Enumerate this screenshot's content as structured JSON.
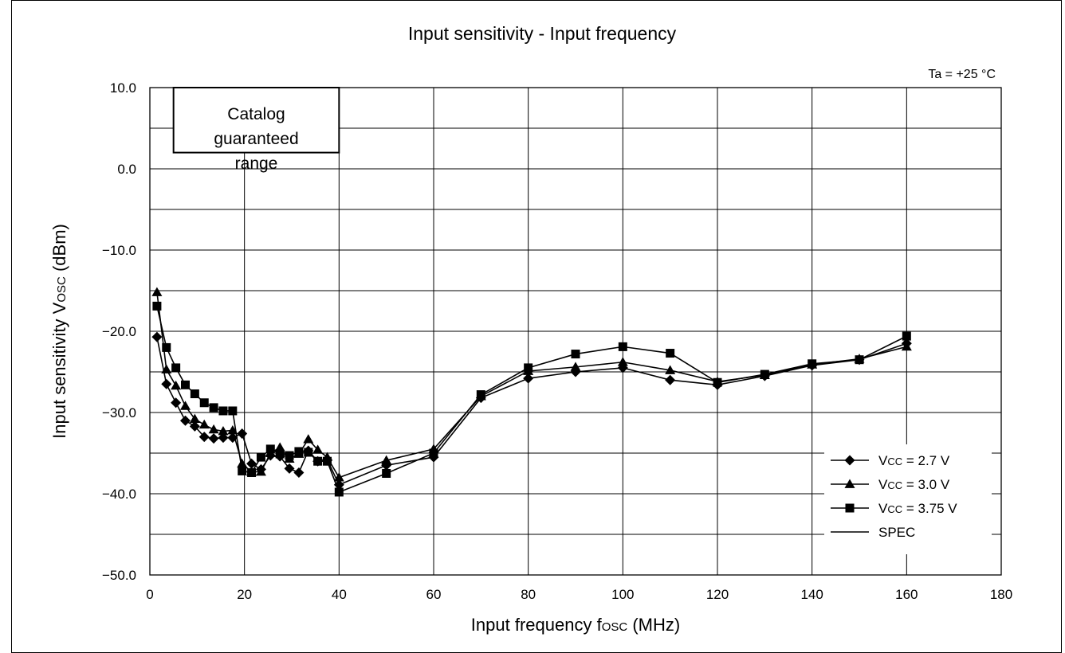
{
  "chart_data": {
    "type": "line",
    "title": "Input sensitivity - Input frequency",
    "annotation": "Ta = +25 °C",
    "xlabel": {
      "main": "Input frequency f",
      "sub": "OSC",
      "unit": " (MHz)"
    },
    "ylabel": {
      "main": "Input sensitivity V",
      "sub": "OSC",
      "unit": " (dBm)"
    },
    "xlim": [
      0,
      180
    ],
    "ylim": [
      -50,
      10
    ],
    "x_ticks": [
      0,
      20,
      40,
      60,
      80,
      100,
      120,
      140,
      160,
      180
    ],
    "x_tick_labels": [
      "0",
      "20",
      "40",
      "60",
      "80",
      "100",
      "120",
      "140",
      "160",
      "180"
    ],
    "y_ticks": [
      10,
      0,
      -10,
      -20,
      -30,
      -40,
      -50
    ],
    "y_tick_labels": [
      "10.0",
      "0.0",
      "−10.0",
      "−20.0",
      "−30.0",
      "−40.0",
      "−50.0"
    ],
    "grid": true,
    "guaranteed_box": {
      "lines": [
        "Catalog",
        "guaranteed",
        "range"
      ],
      "x_range": [
        5,
        40
      ],
      "y_range": [
        2,
        10
      ]
    },
    "legend_position": "bottom-right",
    "series": [
      {
        "name": "VCC = 2.7 V",
        "label_main": "V",
        "label_sub": "CC",
        "label_rest": " = 2.7 V",
        "marker": "diamond",
        "x": [
          1.5,
          3.5,
          5.5,
          7.5,
          9.5,
          11.5,
          13.5,
          15.5,
          17.5,
          19.5,
          21.5,
          23.5,
          25.5,
          27.5,
          29.5,
          31.5,
          33.5,
          35.5,
          37.5,
          40,
          50,
          60,
          70,
          80,
          90,
          100,
          110,
          120,
          130,
          140,
          150,
          160
        ],
        "y": [
          -20.7,
          -26.5,
          -28.8,
          -31,
          -31.7,
          -33,
          -33.2,
          -33.1,
          -33.1,
          -32.6,
          -36.3,
          -37,
          -35.3,
          -35.4,
          -36.9,
          -37.4,
          -34.7,
          -36,
          -35.8,
          -38.9,
          -36.5,
          -35.5,
          -28.2,
          -25.8,
          -25,
          -24.5,
          -26,
          -26.6,
          -25.5,
          -24.2,
          -23.5,
          -21.5
        ]
      },
      {
        "name": "VCC = 3.0 V",
        "label_main": "V",
        "label_sub": "CC",
        "label_rest": " = 3.0 V",
        "marker": "triangle",
        "x": [
          1.5,
          3.5,
          5.5,
          7.5,
          9.5,
          11.5,
          13.5,
          15.5,
          17.5,
          19.5,
          21.5,
          23.5,
          25.5,
          27.5,
          29.5,
          31.5,
          33.5,
          35.5,
          37.5,
          40,
          50,
          60,
          70,
          80,
          90,
          100,
          110,
          120,
          130,
          140,
          150,
          160
        ],
        "y": [
          -15.2,
          -24.7,
          -26.7,
          -29.2,
          -30.8,
          -31.5,
          -32.1,
          -32.3,
          -32.2,
          -36.3,
          -37.3,
          -37.3,
          -35,
          -34.3,
          -35.7,
          -35.1,
          -33.3,
          -34.6,
          -35.5,
          -38,
          -35.9,
          -34.5,
          -28,
          -24.9,
          -24.4,
          -23.8,
          -24.8,
          -26.2,
          -25.4,
          -24.1,
          -23.4,
          -21.9
        ]
      },
      {
        "name": "VCC = 3.75 V",
        "label_main": "V",
        "label_sub": "CC",
        "label_rest": " = 3.75 V",
        "marker": "square",
        "x": [
          1.5,
          3.5,
          5.5,
          7.5,
          9.5,
          11.5,
          13.5,
          15.5,
          17.5,
          19.5,
          21.5,
          23.5,
          25.5,
          27.5,
          29.5,
          31.5,
          33.5,
          35.5,
          37.5,
          40,
          50,
          60,
          70,
          80,
          90,
          100,
          110,
          120,
          130,
          140,
          150,
          160
        ],
        "y": [
          -16.9,
          -22,
          -24.5,
          -26.6,
          -27.7,
          -28.8,
          -29.4,
          -29.8,
          -29.8,
          -37.2,
          -37.4,
          -35.5,
          -34.5,
          -35.1,
          -35.3,
          -34.8,
          -34.9,
          -36,
          -36,
          -39.8,
          -37.5,
          -35,
          -27.8,
          -24.5,
          -22.8,
          -21.9,
          -22.7,
          -26.3,
          -25.3,
          -24,
          -23.5,
          -20.6
        ]
      }
    ],
    "spec_line": {
      "name": "SPEC",
      "x": [
        5,
        40
      ],
      "y": [
        10,
        10
      ]
    }
  }
}
